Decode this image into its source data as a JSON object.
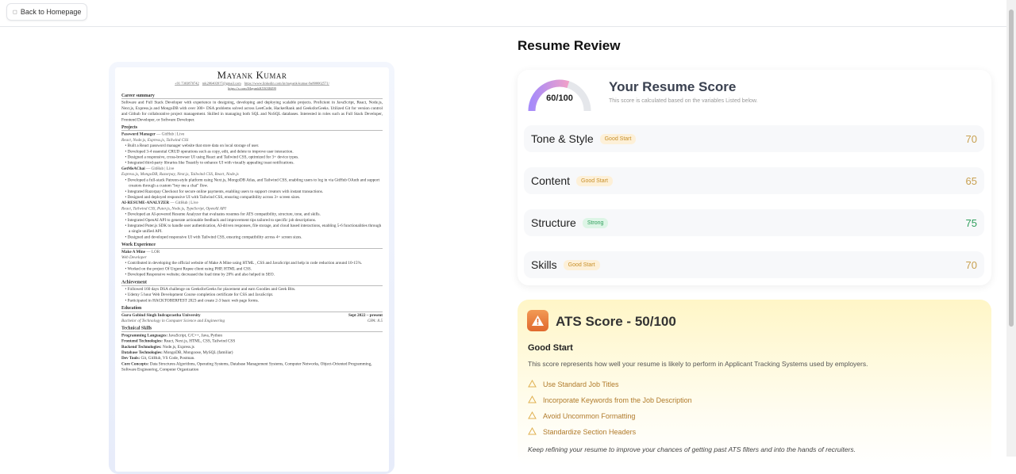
{
  "nav": {
    "back_label": "Back to Homepage",
    "back_icon": "arrow-left-icon"
  },
  "resume": {
    "name": "Mayank Kumar",
    "contact": [
      "+91 7303870742",
      "mk2064039?7@gmail.com",
      "https://www.linkedin.com/in/mayank-kumar-9a800002571/",
      "https://x.com/MayankK53038499"
    ],
    "summary_title": "Career summary",
    "summary": "Software and Full Stack Developer with experience in designing, developing and deploying scalable projects. Proficient in JavaScript, React, Node.js, Next.js, Express.js and MongoDB with over 300+ DSA problems solved across LeetCode, HackerRank and GeeksforGeeks. Utilized Git for version control and Github for collaborative project management. Skilled in managing both SQL and NoSQL databases. Interested in roles such as Full Stack Developer, Frontend Developer, or Software Developer.",
    "projects_title": "Projects",
    "projects": [
      {
        "name": "Password Manager",
        "links": "— GitHub | Live",
        "stack": "React, Node.js, Express.js, Tailwind CSS",
        "bullets": [
          "Built a React password manager website that store data on local storage of user.",
          "Developed 3-4 essential CRUD operations such as copy, edit, and delete to improve user interaction.",
          "Designed a responsive, cross-browser UI using React and Tailwind CSS, optimized for 3+ device types.",
          "Integrated third-party libraries like Toastify to enhance UI with visually appealing toast notifications."
        ]
      },
      {
        "name": "GetMeAChai",
        "links": "— GitHub | Live",
        "stack": "Express.js, MongoDB, Razorpay, Next.js, Tailwind CSS, React, Node.js",
        "bullets": [
          "Developed a full-stack Patreon-style platform using Next.js, MongoDB Atlas, and Tailwind CSS, enabling users to log in via GitHub OAuth and support creators through a custom \"buy me a chai\" flow.",
          "Integrated Razorpay Checkout for secure online payments, enabling users to support creators with instant transactions.",
          "Designed and deployed responsive UI with Tailwind CSS, ensuring compatibility across 3+ screen sizes."
        ]
      },
      {
        "name": "AI-RESUME-ANALYZER",
        "links": "— GitHub | Live",
        "stack": "React, Tailwind CSS, Puter.js, Node.js, TypeScript, OpenAI API",
        "bullets": [
          "Developed an AI-powered Resume Analyzer that evaluates resumes for ATS compatibility, structure, tone, and skills.",
          "Integrated OpenAI API to generate actionable feedback and improvement tips tailored to specific job descriptions.",
          "Integrated Puter.js SDK to handle user authentication, AI-driven responses, file storage, and cloud based interactions, enabling 5-6 functionalities through a single unified API.",
          "Designed and developed responsive UI with Tailwind CSS, ensuring compatibility across 4+ screen sizes."
        ]
      }
    ],
    "work_title": "Work Experience",
    "work": {
      "name": "Make A Mine",
      "links": "— LOR",
      "role": "Web Developer",
      "bullets": [
        "Contributed in developing the official website of Make A Mine using HTML , CSS and JavaScript and help in code reduction around 10-15%.",
        "Worked on the project Of Urgent Rupee client using PHP, HTML and CSS.",
        "Developed Responsive website; decreased the load time by 20% and also helped in SEO."
      ]
    },
    "achievement_title": "Achievement",
    "achievements": [
      "Followed 160 days DSA challenge on GeeksforGeeks for placement and earn Goodies and Geek Bits.",
      "Udemy 5 hour Web Development Course completion certificate for CSS and JavaScript.",
      "Participated in HACKTOBERFEST 2023 and create 2-3 basic web page forms."
    ],
    "education_title": "Education",
    "education": {
      "school": "Guru Gobind Singh Indraprastha University",
      "dates": "Sept 2022 – present",
      "degree": "Bachelor of Technology in Computer Science and Engineering",
      "gpa": "GPA: 8.5"
    },
    "skills_title": "Technical Skills",
    "skills": [
      {
        "label": "Programming Languages:",
        "value": "JavaScript, C/C++, Java, Python"
      },
      {
        "label": "Frontend Technologies:",
        "value": "React, Next.js, HTML, CSS, Tailwind CSS"
      },
      {
        "label": "Backend Technologies:",
        "value": "Node.js, Express.js"
      },
      {
        "label": "Database Technologies:",
        "value": "MongoDB, Mongoose, MySQL (familiar)"
      },
      {
        "label": "Dev Tools:",
        "value": "Git, GitHub, VS Code, Postman."
      },
      {
        "label": "Core Concepts:",
        "value": "Data Structures Algorithms, Operating Systems, Database Management Systems, Computer Networks, Object-Oriented Programming, Software Engineering, Computer Organization"
      }
    ]
  },
  "review": {
    "title": "Resume Review",
    "score": {
      "value": 60,
      "max": 100,
      "label": "60/100",
      "title": "Your Resume Score",
      "subtitle": "This score is calculated based on the variables Listed below.",
      "gauge_colors": [
        "#a78bfa",
        "#f0a0c8"
      ]
    },
    "categories": [
      {
        "name": "Tone & Style",
        "badge": "Good Start",
        "badge_type": "good",
        "score": "70",
        "score_color": "#c8a050"
      },
      {
        "name": "Content",
        "badge": "Good Start",
        "badge_type": "good",
        "score": "65",
        "score_color": "#c8a050"
      },
      {
        "name": "Structure",
        "badge": "Strong",
        "badge_type": "strong",
        "score": "75",
        "score_color": "#2e9e5b"
      },
      {
        "name": "Skills",
        "badge": "Good Start",
        "badge_type": "good",
        "score": "70",
        "score_color": "#c8a050"
      }
    ],
    "ats": {
      "title": "ATS Score - 50/100",
      "score": 50,
      "heading": "Good Start",
      "description": "This score represents how well your resume is likely to perform in Applicant Tracking Systems used by employers.",
      "tips": [
        "Use Standard Job Titles",
        "Incorporate Keywords from the Job Description",
        "Avoid Uncommon Formatting",
        "Standardize Section Headers"
      ],
      "footer": "Keep refining your resume to improve your chances of getting past ATS filters and into the hands of recruiters.",
      "icon": "warning-icon"
    }
  }
}
